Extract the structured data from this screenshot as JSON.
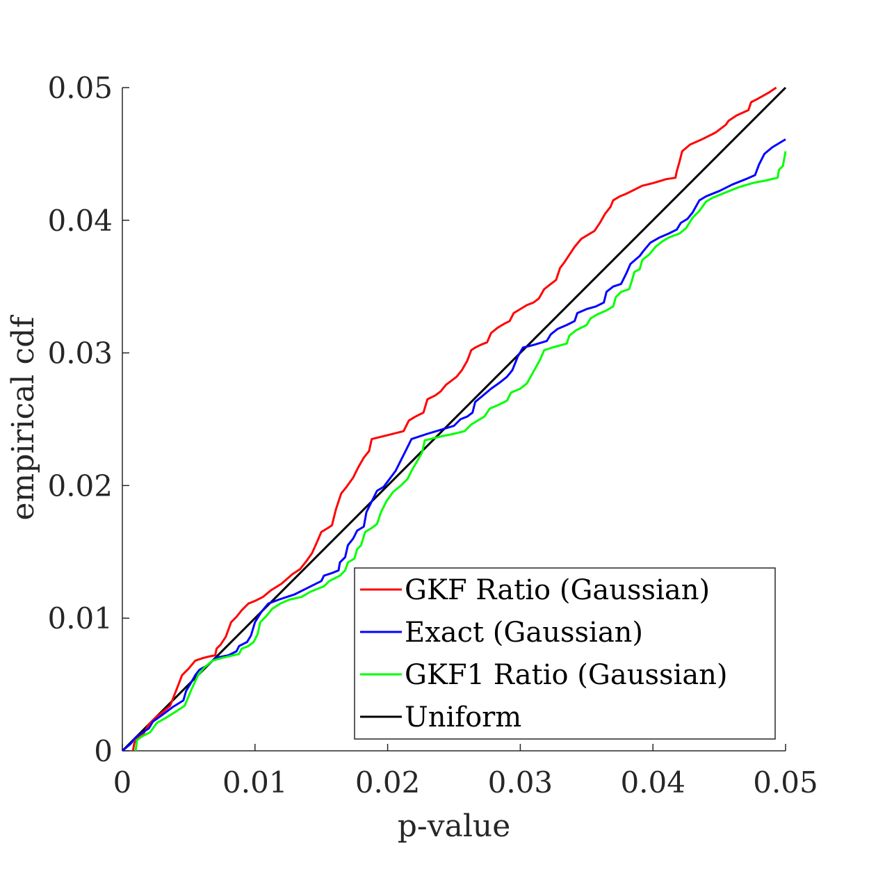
{
  "chart_data": {
    "type": "line",
    "title": "",
    "xlabel": "p-value",
    "ylabel": "empirical cdf",
    "xlim": [
      0,
      0.05
    ],
    "ylim": [
      0,
      0.05
    ],
    "x_ticks": [
      "0",
      "0.01",
      "0.02",
      "0.03",
      "0.04",
      "0.05"
    ],
    "y_ticks": [
      "0",
      "0.01",
      "0.02",
      "0.03",
      "0.04",
      "0.05"
    ],
    "grid": false,
    "legend_position": "bottom-right",
    "series": [
      {
        "name": "GKF Ratio (Gaussian)",
        "color": "#ff0000",
        "points": [
          [
            0.0008,
            0.0
          ],
          [
            0.0009,
            0.0006
          ],
          [
            0.0012,
            0.001
          ],
          [
            0.0016,
            0.0013
          ],
          [
            0.002,
            0.002
          ],
          [
            0.0025,
            0.0025
          ],
          [
            0.003,
            0.0029
          ],
          [
            0.0036,
            0.0034
          ],
          [
            0.004,
            0.0044
          ],
          [
            0.0045,
            0.0057
          ],
          [
            0.005,
            0.0062
          ],
          [
            0.0055,
            0.0068
          ],
          [
            0.0061,
            0.007
          ],
          [
            0.0065,
            0.0071
          ],
          [
            0.007,
            0.0072
          ],
          [
            0.0071,
            0.0077
          ],
          [
            0.0074,
            0.008
          ],
          [
            0.0078,
            0.0086
          ],
          [
            0.0082,
            0.0097
          ],
          [
            0.0086,
            0.0101
          ],
          [
            0.009,
            0.0106
          ],
          [
            0.0095,
            0.0111
          ],
          [
            0.01,
            0.0113
          ],
          [
            0.0106,
            0.0116
          ],
          [
            0.0112,
            0.0121
          ],
          [
            0.012,
            0.0126
          ],
          [
            0.0128,
            0.0133
          ],
          [
            0.0134,
            0.0137
          ],
          [
            0.0138,
            0.0142
          ],
          [
            0.0143,
            0.0149
          ],
          [
            0.0147,
            0.0158
          ],
          [
            0.015,
            0.0165
          ],
          [
            0.0155,
            0.0168
          ],
          [
            0.0158,
            0.017
          ],
          [
            0.0161,
            0.0182
          ],
          [
            0.0165,
            0.0194
          ],
          [
            0.0169,
            0.0199
          ],
          [
            0.0174,
            0.0206
          ],
          [
            0.0178,
            0.0214
          ],
          [
            0.0182,
            0.0221
          ],
          [
            0.0186,
            0.0226
          ],
          [
            0.0188,
            0.0235
          ],
          [
            0.0192,
            0.0236
          ],
          [
            0.02,
            0.0238
          ],
          [
            0.0212,
            0.0241
          ],
          [
            0.0216,
            0.0249
          ],
          [
            0.0221,
            0.0252
          ],
          [
            0.0227,
            0.0255
          ],
          [
            0.023,
            0.0265
          ],
          [
            0.0236,
            0.0268
          ],
          [
            0.024,
            0.0271
          ],
          [
            0.0244,
            0.0276
          ],
          [
            0.0248,
            0.0279
          ],
          [
            0.0252,
            0.0282
          ],
          [
            0.0256,
            0.0287
          ],
          [
            0.026,
            0.0294
          ],
          [
            0.0263,
            0.0302
          ],
          [
            0.0266,
            0.0304
          ],
          [
            0.027,
            0.0306
          ],
          [
            0.0275,
            0.0308
          ],
          [
            0.0278,
            0.0315
          ],
          [
            0.0283,
            0.0319
          ],
          [
            0.0288,
            0.0322
          ],
          [
            0.0292,
            0.0324
          ],
          [
            0.0295,
            0.033
          ],
          [
            0.03,
            0.0333
          ],
          [
            0.0305,
            0.0336
          ],
          [
            0.031,
            0.0338
          ],
          [
            0.0314,
            0.0341
          ],
          [
            0.0318,
            0.0348
          ],
          [
            0.0323,
            0.0352
          ],
          [
            0.0327,
            0.0355
          ],
          [
            0.033,
            0.0364
          ],
          [
            0.0333,
            0.0368
          ],
          [
            0.0337,
            0.0374
          ],
          [
            0.0341,
            0.038
          ],
          [
            0.0346,
            0.0386
          ],
          [
            0.0351,
            0.0389
          ],
          [
            0.0356,
            0.0392
          ],
          [
            0.036,
            0.0398
          ],
          [
            0.0364,
            0.0405
          ],
          [
            0.0368,
            0.041
          ],
          [
            0.037,
            0.0415
          ],
          [
            0.0375,
            0.0418
          ],
          [
            0.038,
            0.042
          ],
          [
            0.0386,
            0.0423
          ],
          [
            0.0392,
            0.0426
          ],
          [
            0.04,
            0.0428
          ],
          [
            0.041,
            0.0431
          ],
          [
            0.0417,
            0.0432
          ],
          [
            0.0418,
            0.0437
          ],
          [
            0.042,
            0.0444
          ],
          [
            0.0422,
            0.0452
          ],
          [
            0.0428,
            0.0457
          ],
          [
            0.0437,
            0.0461
          ],
          [
            0.0447,
            0.0466
          ],
          [
            0.0455,
            0.0472
          ],
          [
            0.0457,
            0.0475
          ],
          [
            0.0463,
            0.0479
          ],
          [
            0.0472,
            0.0483
          ],
          [
            0.0474,
            0.0489
          ],
          [
            0.0478,
            0.0491
          ],
          [
            0.0487,
            0.0496
          ],
          [
            0.0493,
            0.05
          ]
        ]
      },
      {
        "name": "Exact (Gaussian)",
        "color": "#0000ff",
        "points": [
          [
            0.0,
            0.0
          ],
          [
            0.0006,
            0.0005
          ],
          [
            0.001,
            0.001
          ],
          [
            0.0014,
            0.0013
          ],
          [
            0.002,
            0.0017
          ],
          [
            0.0023,
            0.0022
          ],
          [
            0.003,
            0.0027
          ],
          [
            0.0038,
            0.0033
          ],
          [
            0.0046,
            0.0038
          ],
          [
            0.0048,
            0.0045
          ],
          [
            0.0051,
            0.005
          ],
          [
            0.0055,
            0.0057
          ],
          [
            0.0058,
            0.0061
          ],
          [
            0.0065,
            0.0065
          ],
          [
            0.007,
            0.007
          ],
          [
            0.008,
            0.0072
          ],
          [
            0.0086,
            0.0075
          ],
          [
            0.0088,
            0.0079
          ],
          [
            0.0094,
            0.0082
          ],
          [
            0.0097,
            0.0087
          ],
          [
            0.01,
            0.0097
          ],
          [
            0.0105,
            0.0105
          ],
          [
            0.011,
            0.0111
          ],
          [
            0.0118,
            0.0114
          ],
          [
            0.013,
            0.0118
          ],
          [
            0.014,
            0.0123
          ],
          [
            0.015,
            0.0128
          ],
          [
            0.0152,
            0.0132
          ],
          [
            0.0158,
            0.0134
          ],
          [
            0.0163,
            0.0136
          ],
          [
            0.0164,
            0.0142
          ],
          [
            0.0168,
            0.0146
          ],
          [
            0.017,
            0.0155
          ],
          [
            0.0174,
            0.016
          ],
          [
            0.0177,
            0.0166
          ],
          [
            0.0182,
            0.0169
          ],
          [
            0.0184,
            0.018
          ],
          [
            0.0188,
            0.0188
          ],
          [
            0.0192,
            0.0196
          ],
          [
            0.0197,
            0.0199
          ],
          [
            0.02,
            0.0203
          ],
          [
            0.0206,
            0.0211
          ],
          [
            0.021,
            0.0219
          ],
          [
            0.0214,
            0.0227
          ],
          [
            0.0218,
            0.0235
          ],
          [
            0.023,
            0.0239
          ],
          [
            0.024,
            0.0242
          ],
          [
            0.025,
            0.0245
          ],
          [
            0.0255,
            0.025
          ],
          [
            0.026,
            0.0252
          ],
          [
            0.0264,
            0.0255
          ],
          [
            0.0266,
            0.0263
          ],
          [
            0.0272,
            0.0268
          ],
          [
            0.0278,
            0.0273
          ],
          [
            0.0285,
            0.0278
          ],
          [
            0.029,
            0.0282
          ],
          [
            0.0294,
            0.0287
          ],
          [
            0.0298,
            0.0297
          ],
          [
            0.0302,
            0.0304
          ],
          [
            0.031,
            0.0306
          ],
          [
            0.032,
            0.0309
          ],
          [
            0.0323,
            0.0314
          ],
          [
            0.0328,
            0.0318
          ],
          [
            0.0335,
            0.0321
          ],
          [
            0.0341,
            0.0324
          ],
          [
            0.0343,
            0.033
          ],
          [
            0.035,
            0.0333
          ],
          [
            0.0357,
            0.0335
          ],
          [
            0.0363,
            0.0338
          ],
          [
            0.0365,
            0.0346
          ],
          [
            0.037,
            0.035
          ],
          [
            0.0376,
            0.0352
          ],
          [
            0.038,
            0.036
          ],
          [
            0.0383,
            0.0367
          ],
          [
            0.039,
            0.0373
          ],
          [
            0.0393,
            0.0377
          ],
          [
            0.0398,
            0.0383
          ],
          [
            0.0405,
            0.0387
          ],
          [
            0.0412,
            0.039
          ],
          [
            0.0418,
            0.0393
          ],
          [
            0.0421,
            0.0398
          ],
          [
            0.0426,
            0.0401
          ],
          [
            0.043,
            0.0406
          ],
          [
            0.0435,
            0.0415
          ],
          [
            0.044,
            0.0418
          ],
          [
            0.045,
            0.0422
          ],
          [
            0.046,
            0.0427
          ],
          [
            0.047,
            0.0431
          ],
          [
            0.0477,
            0.0434
          ],
          [
            0.048,
            0.0442
          ],
          [
            0.0484,
            0.045
          ],
          [
            0.049,
            0.0455
          ],
          [
            0.05,
            0.0461
          ]
        ]
      },
      {
        "name": "GKF1 Ratio (Gaussian)",
        "color": "#00ff00",
        "points": [
          [
            0.001,
            0.0
          ],
          [
            0.0011,
            0.0008
          ],
          [
            0.0015,
            0.0011
          ],
          [
            0.0021,
            0.0014
          ],
          [
            0.0026,
            0.0021
          ],
          [
            0.0033,
            0.0025
          ],
          [
            0.0041,
            0.003
          ],
          [
            0.0047,
            0.0034
          ],
          [
            0.0052,
            0.0046
          ],
          [
            0.0057,
            0.0057
          ],
          [
            0.0062,
            0.0063
          ],
          [
            0.0068,
            0.0068
          ],
          [
            0.0075,
            0.007
          ],
          [
            0.0088,
            0.0073
          ],
          [
            0.009,
            0.0077
          ],
          [
            0.0095,
            0.0079
          ],
          [
            0.0099,
            0.0082
          ],
          [
            0.0102,
            0.0088
          ],
          [
            0.0104,
            0.0097
          ],
          [
            0.0108,
            0.0101
          ],
          [
            0.0113,
            0.0107
          ],
          [
            0.0119,
            0.0111
          ],
          [
            0.0126,
            0.0114
          ],
          [
            0.0135,
            0.0116
          ],
          [
            0.0142,
            0.012
          ],
          [
            0.0152,
            0.0124
          ],
          [
            0.0156,
            0.0128
          ],
          [
            0.0164,
            0.0132
          ],
          [
            0.0168,
            0.0136
          ],
          [
            0.017,
            0.0142
          ],
          [
            0.0175,
            0.0145
          ],
          [
            0.0177,
            0.0152
          ],
          [
            0.018,
            0.0155
          ],
          [
            0.0183,
            0.0165
          ],
          [
            0.0188,
            0.0168
          ],
          [
            0.0192,
            0.0171
          ],
          [
            0.0195,
            0.018
          ],
          [
            0.0199,
            0.0188
          ],
          [
            0.0204,
            0.0195
          ],
          [
            0.021,
            0.02
          ],
          [
            0.0215,
            0.0205
          ],
          [
            0.0218,
            0.0211
          ],
          [
            0.0222,
            0.0218
          ],
          [
            0.0226,
            0.0225
          ],
          [
            0.0228,
            0.0234
          ],
          [
            0.024,
            0.0237
          ],
          [
            0.025,
            0.0239
          ],
          [
            0.0258,
            0.0241
          ],
          [
            0.0263,
            0.0246
          ],
          [
            0.0268,
            0.0249
          ],
          [
            0.0273,
            0.0252
          ],
          [
            0.0277,
            0.0258
          ],
          [
            0.0284,
            0.0261
          ],
          [
            0.029,
            0.0264
          ],
          [
            0.0293,
            0.027
          ],
          [
            0.03,
            0.0273
          ],
          [
            0.0305,
            0.0277
          ],
          [
            0.031,
            0.0286
          ],
          [
            0.0315,
            0.0295
          ],
          [
            0.0318,
            0.0302
          ],
          [
            0.0324,
            0.0304
          ],
          [
            0.0335,
            0.0307
          ],
          [
            0.0337,
            0.0313
          ],
          [
            0.0342,
            0.0317
          ],
          [
            0.035,
            0.0321
          ],
          [
            0.0353,
            0.0326
          ],
          [
            0.0358,
            0.0329
          ],
          [
            0.0365,
            0.0332
          ],
          [
            0.037,
            0.0335
          ],
          [
            0.0372,
            0.0342
          ],
          [
            0.0376,
            0.0346
          ],
          [
            0.0382,
            0.0348
          ],
          [
            0.0384,
            0.0354
          ],
          [
            0.0386,
            0.0361
          ],
          [
            0.039,
            0.0363
          ],
          [
            0.0392,
            0.037
          ],
          [
            0.0397,
            0.0374
          ],
          [
            0.0402,
            0.038
          ],
          [
            0.0407,
            0.0384
          ],
          [
            0.0412,
            0.0387
          ],
          [
            0.042,
            0.039
          ],
          [
            0.0425,
            0.0394
          ],
          [
            0.043,
            0.0402
          ],
          [
            0.0435,
            0.0407
          ],
          [
            0.044,
            0.0414
          ],
          [
            0.0445,
            0.0417
          ],
          [
            0.0455,
            0.0421
          ],
          [
            0.0465,
            0.0425
          ],
          [
            0.0475,
            0.0428
          ],
          [
            0.0485,
            0.043
          ],
          [
            0.0494,
            0.0432
          ],
          [
            0.0495,
            0.0438
          ],
          [
            0.0498,
            0.0441
          ],
          [
            0.05,
            0.0452
          ]
        ]
      },
      {
        "name": "Uniform",
        "color": "#000000",
        "points": [
          [
            0.0,
            0.0
          ],
          [
            0.05,
            0.05
          ]
        ]
      }
    ]
  }
}
